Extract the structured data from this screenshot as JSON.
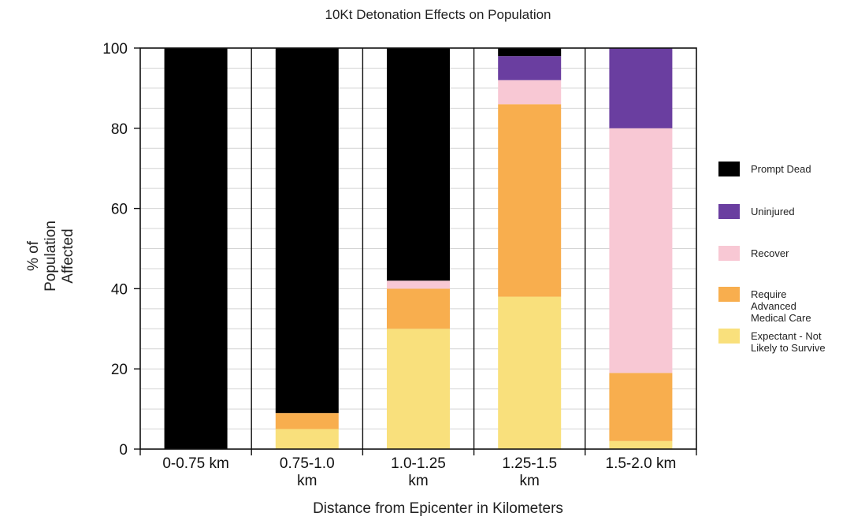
{
  "chart_data": {
    "type": "bar",
    "stacked": true,
    "title": "10Kt Detonation Effects on Population",
    "xlabel": "Distance from Epicenter in Kilometers",
    "ylabel": [
      "% of",
      "Population",
      "Affected"
    ],
    "ylim": [
      0,
      100
    ],
    "yticks": [
      "0",
      "20",
      "40",
      "60",
      "80",
      "100"
    ],
    "grid": true,
    "legend_position": "right",
    "categories": [
      [
        "0-0.75 km"
      ],
      [
        "0.75-1.0",
        "km"
      ],
      [
        "1.0-1.25",
        "km"
      ],
      [
        "1.25-1.5",
        "km"
      ],
      [
        "1.5-2.0 km"
      ]
    ],
    "series": [
      {
        "name": "Expectant - Not Likely to Survive",
        "legend_lines": [
          "Expectant - Not",
          "Likely to Survive"
        ],
        "color": "#f9e07c",
        "values": [
          0,
          5,
          30,
          38,
          2
        ]
      },
      {
        "name": "Require Advanced Medical Care",
        "legend_lines": [
          "Require",
          "Advanced",
          "Medical Care"
        ],
        "color": "#f8ae4e",
        "values": [
          0,
          4,
          10,
          48,
          17
        ]
      },
      {
        "name": "Recover",
        "legend_lines": [
          "Recover"
        ],
        "color": "#f8c8d4",
        "values": [
          0,
          0,
          2,
          6,
          61
        ]
      },
      {
        "name": "Uninjured",
        "legend_lines": [
          "Uninjured"
        ],
        "color": "#6a3ea0",
        "values": [
          0,
          0,
          0,
          6,
          20
        ]
      },
      {
        "name": "Prompt Dead",
        "legend_lines": [
          "Prompt Dead"
        ],
        "color": "#000000",
        "values": [
          100,
          91,
          58,
          2,
          0
        ]
      }
    ],
    "legend_order": [
      "Prompt Dead",
      "Uninjured",
      "Recover",
      "Require Advanced Medical Care",
      "Expectant - Not Likely to Survive"
    ]
  }
}
